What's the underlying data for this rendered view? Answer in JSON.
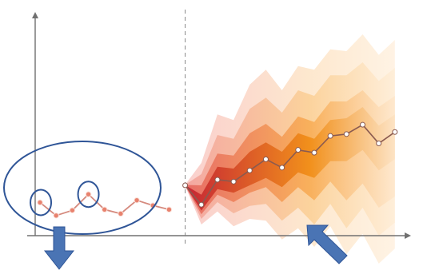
{
  "chart_data": {
    "type": "line",
    "title": "",
    "xlabel": "",
    "ylabel": "",
    "grid": false,
    "legend": "none",
    "description_note": "",
    "series": [
      {
        "key": "history",
        "x": [
          0,
          1,
          2,
          3,
          4,
          5,
          6,
          7,
          8
        ],
        "values": [
          1.78,
          1.08,
          1.36,
          2.22,
          1.4,
          1.18,
          1.9,
          1.62,
          1.4
        ]
      },
      {
        "key": "forecast_median",
        "x": [
          9,
          10,
          11,
          12,
          13,
          14,
          15,
          16,
          17,
          18,
          19,
          20,
          21,
          22
        ],
        "values": [
          2.7,
          1.66,
          3.0,
          2.9,
          3.5,
          4.1,
          3.65,
          4.6,
          4.45,
          5.35,
          5.45,
          5.95,
          4.95,
          5.56
        ]
      }
    ],
    "forecast_fan": {
      "outer": {
        "upper": [
          2.74,
          3.9,
          6.5,
          6.2,
          8.1,
          8.9,
          7.8,
          9.1,
          8.9,
          10.0,
          9.9,
          10.8,
          9.7,
          10.5
        ],
        "lower": [
          2.66,
          0.6,
          1.3,
          0.5,
          0.9,
          0.8,
          -0.2,
          0.4,
          -0.6,
          0.5,
          -1.0,
          0.1,
          -1.5,
          -0.7
        ]
      },
      "band2": {
        "upper": [
          2.73,
          3.3,
          5.4,
          5.2,
          6.8,
          7.4,
          6.6,
          7.8,
          7.5,
          8.6,
          8.6,
          9.3,
          8.3,
          9.0
        ],
        "lower": [
          2.67,
          0.9,
          1.8,
          1.2,
          1.6,
          1.7,
          0.8,
          1.5,
          0.6,
          1.7,
          0.4,
          1.5,
          0.0,
          0.7
        ]
      },
      "band3": {
        "upper": [
          2.72,
          2.7,
          4.4,
          4.3,
          5.5,
          6.0,
          5.3,
          6.4,
          6.1,
          7.2,
          7.2,
          7.8,
          6.9,
          7.5
        ],
        "lower": [
          2.68,
          1.15,
          2.2,
          1.8,
          2.3,
          2.6,
          1.8,
          2.6,
          1.9,
          2.9,
          1.9,
          2.8,
          1.5,
          2.1
        ]
      },
      "inner": {
        "upper": [
          2.71,
          2.2,
          3.7,
          3.6,
          4.5,
          5.0,
          4.5,
          5.5,
          5.2,
          6.2,
          6.3,
          6.9,
          5.9,
          6.5
        ],
        "lower": [
          2.69,
          1.35,
          2.5,
          2.3,
          2.7,
          3.1,
          2.6,
          3.4,
          3.1,
          4.0,
          4.0,
          4.6,
          3.5,
          4.1
        ]
      }
    },
    "forecast_start_x": 9,
    "xlim": [
      -0.3,
      23.0
    ],
    "ylim": [
      0,
      12
    ],
    "colors": {
      "axis": "#707070",
      "history_line": "#d58a7e",
      "history_marker": "#e8826e",
      "median_line": "#8a5a50",
      "median_marker": "#ffffff",
      "divider": "#888888",
      "annotation": "#2f5597",
      "fan_early": [
        "#f9c7c4",
        "#f2a09a",
        "#e5625c",
        "#c0192c"
      ],
      "fan_late": [
        "#fde4c6",
        "#fbcf94",
        "#f8aa50",
        "#f08a10"
      ]
    }
  }
}
